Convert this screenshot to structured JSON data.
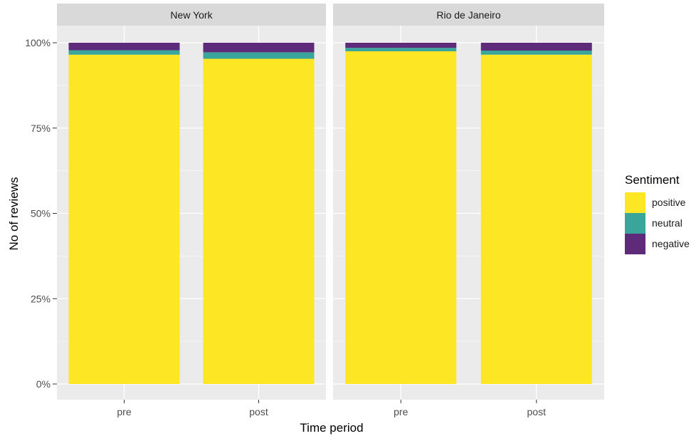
{
  "chart_data": {
    "type": "bar",
    "stacked": true,
    "facets": [
      "New York",
      "Rio de Janeiro"
    ],
    "categories": [
      "pre",
      "post"
    ],
    "series": [
      {
        "name": "positive",
        "values": {
          "New York": [
            96.5,
            95.3
          ],
          "Rio de Janeiro": [
            97.5,
            96.5
          ]
        }
      },
      {
        "name": "neutral",
        "values": {
          "New York": [
            1.3,
            1.9
          ],
          "Rio de Janeiro": [
            1.0,
            1.2
          ]
        }
      },
      {
        "name": "negative",
        "values": {
          "New York": [
            2.2,
            2.8
          ],
          "Rio de Janeiro": [
            1.5,
            2.3
          ]
        }
      }
    ],
    "xlabel": "Time period",
    "ylabel": "No of reviews",
    "ylim": [
      0,
      100
    ],
    "yticks": [
      "0%",
      "25%",
      "50%",
      "75%",
      "100%"
    ],
    "legend": {
      "title": "Sentiment",
      "position": "right"
    },
    "grid": true
  },
  "colors": {
    "positive": "#FDE725",
    "neutral": "#3AA59A",
    "negative": "#5E2B7B",
    "panel": "#EBEBEB",
    "strip": "#D9D9D9",
    "gridline": "#FFFFFF"
  }
}
